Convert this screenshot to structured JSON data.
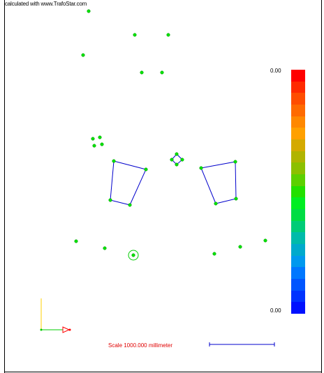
{
  "credit_text": "calculated with www.TrafoStar.com",
  "legend": {
    "max_label": "0.00",
    "min_label": "0.00",
    "colors": [
      "#ff0000",
      "#ff2a00",
      "#ff4d00",
      "#ff6a00",
      "#ff8800",
      "#ffa000",
      "#d4aa00",
      "#b0b400",
      "#8cc000",
      "#5cd000",
      "#22e000",
      "#00ee22",
      "#00dd44",
      "#00cc77",
      "#00bbaa",
      "#00aacc",
      "#0099ee",
      "#0077ff",
      "#0055ff",
      "#0033ff",
      "#0011ff"
    ]
  },
  "scale_label": "Scale 1000.000 millimeter",
  "colors": {
    "node": "#00e000",
    "node_outline": "#008800",
    "edge": "#0000cc",
    "axis_y": "#ffd000",
    "axis_x": "#00cc00",
    "axis_arrow": "#ff0000",
    "scale_bar": "#0000cc"
  }
}
